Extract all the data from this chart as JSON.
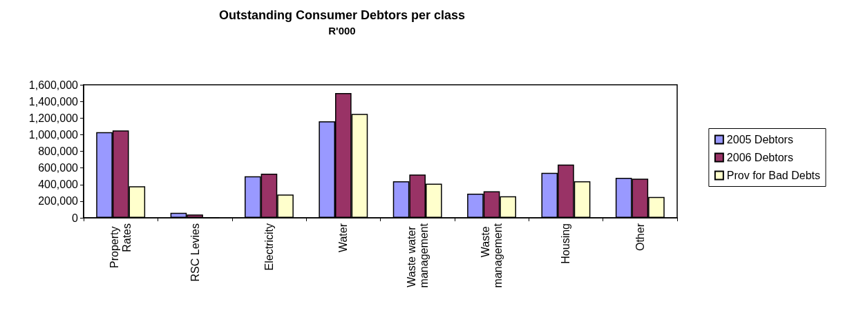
{
  "chart_data": {
    "type": "bar",
    "title": "Outstanding Consumer Debtors per class",
    "subtitle": "R'000",
    "categories": [
      "Property Rates",
      "RSC Levies",
      "Electricity",
      "Water",
      "Waste water management",
      "Waste management",
      "Housing",
      "Other"
    ],
    "series": [
      {
        "name": "2005 Debtors",
        "color": "#9999ff",
        "values": [
          1030000,
          60000,
          500000,
          1160000,
          440000,
          290000,
          540000,
          480000
        ]
      },
      {
        "name": "2006 Debtors",
        "color": "#993366",
        "values": [
          1050000,
          40000,
          530000,
          1500000,
          520000,
          320000,
          640000,
          470000
        ]
      },
      {
        "name": "Prov for Bad Debts",
        "color": "#ffffcc",
        "values": [
          380000,
          0,
          280000,
          1250000,
          410000,
          260000,
          440000,
          250000
        ]
      }
    ],
    "ylim": [
      0,
      1600000
    ],
    "yticks": [
      0,
      {
        "value": 200000,
        "label": "200,000"
      },
      {
        "value": 400000,
        "label": "400,000"
      },
      {
        "value": 600000,
        "label": "600,000"
      },
      {
        "value": 800000,
        "label": "800,000"
      },
      {
        "value": 1000000,
        "label": "1,000,000"
      },
      {
        "value": 1200000,
        "label": "1,200,000"
      },
      {
        "value": 1400000,
        "label": "1,400,000"
      },
      {
        "value": 1600000,
        "label": "1,600,000"
      }
    ],
    "grid": false,
    "legend": "right"
  }
}
